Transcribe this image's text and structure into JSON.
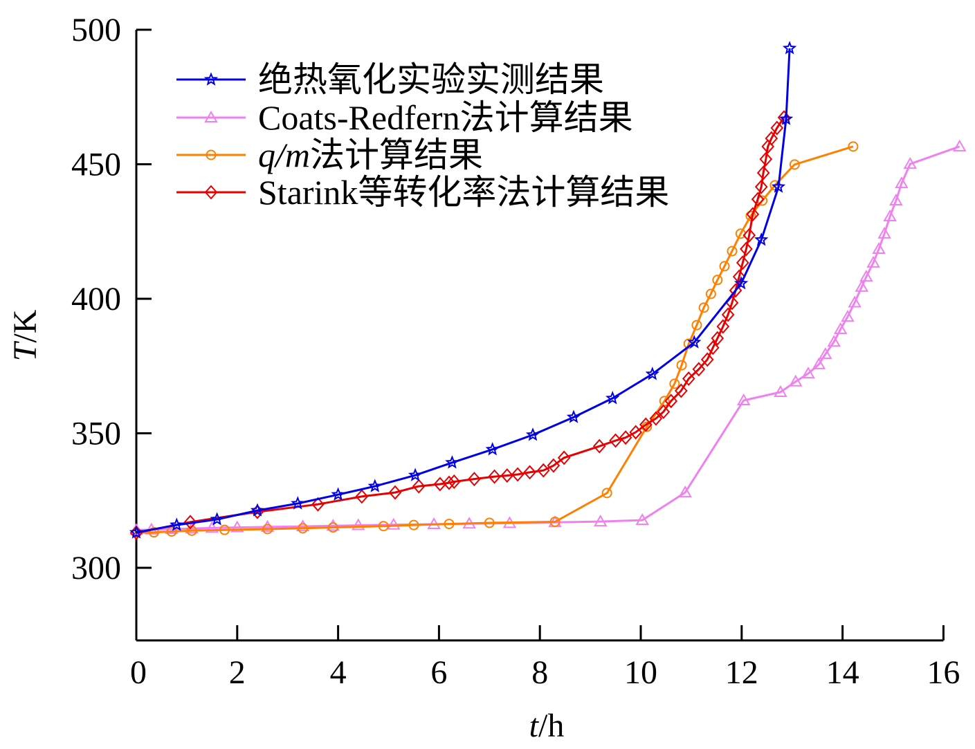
{
  "chart_data": {
    "type": "line",
    "title": "",
    "xlabel": {
      "var": "t",
      "unit": "/h"
    },
    "ylabel": {
      "var": "T",
      "unit": "/K"
    },
    "xlim": [
      0,
      16
    ],
    "ylim": [
      273,
      500
    ],
    "xticks": [
      "0",
      "2",
      "4",
      "6",
      "8",
      "10",
      "12",
      "14",
      "16"
    ],
    "yticks": [
      "300",
      "350",
      "400",
      "450",
      "500"
    ],
    "legend_position": "top-left",
    "series": [
      {
        "name": "绝热氧化实验实测结果",
        "name_italic": "",
        "color": "#0000e6",
        "marker": "star",
        "x": [
          0,
          0.8,
          1.6,
          2.4,
          3.2,
          4.0,
          4.73,
          5.53,
          6.26,
          7.06,
          7.86,
          8.67,
          9.44,
          10.23,
          11.06,
          11.99,
          12.39,
          12.73,
          12.88,
          12.95
        ],
        "y": [
          313.1,
          315.9,
          318.0,
          321.3,
          323.9,
          327.2,
          330.3,
          334.4,
          339.1,
          344.0,
          349.4,
          356.0,
          363.0,
          372.0,
          383.8,
          405.7,
          421.9,
          441.6,
          466.8,
          493.1
        ]
      },
      {
        "name": "Coats-Redfern法计算结果",
        "name_italic": "",
        "color": "#f080f0",
        "marker": "triangle",
        "x": [
          0,
          0.3,
          0.7,
          1.1,
          1.5,
          2.0,
          2.6,
          3.3,
          3.9,
          4.4,
          5.1,
          5.9,
          6.6,
          7.4,
          8.3,
          9.2,
          10.03,
          10.88,
          12.04,
          12.77,
          13.07,
          13.32,
          13.53,
          13.66,
          13.83,
          13.96,
          14.1,
          14.24,
          14.38,
          14.47,
          14.61,
          14.72,
          14.83,
          14.94,
          15.06,
          15.17,
          15.34,
          16.32
        ],
        "y": [
          314,
          314.2,
          314.4,
          314.6,
          314.8,
          315,
          315.2,
          315.4,
          315.6,
          315.8,
          316,
          316.2,
          316.4,
          316.6,
          316.9,
          317.2,
          317.7,
          328,
          362.2,
          365.3,
          369.2,
          372.2,
          375.6,
          379.4,
          384,
          388.7,
          393.3,
          398.6,
          404.4,
          408.2,
          413.4,
          418.5,
          424.2,
          430.6,
          436.5,
          442.9,
          450.1,
          456.6
        ]
      },
      {
        "name": "法计算结果",
        "name_italic": "q/m",
        "color": "#ff8000",
        "marker": "circle",
        "x": [
          0,
          0.35,
          0.7,
          1.1,
          1.75,
          2.6,
          3.3,
          3.9,
          4.9,
          5.5,
          6.2,
          7.0,
          8.3,
          9.33,
          10.12,
          10.47,
          10.67,
          10.81,
          10.95,
          11.11,
          11.25,
          11.39,
          11.52,
          11.66,
          11.81,
          11.98,
          12.18,
          12.41,
          12.66,
          13.05,
          14.21
        ],
        "y": [
          313,
          313.2,
          313.5,
          313.8,
          314.1,
          314.4,
          314.7,
          315,
          315.5,
          315.9,
          316.3,
          316.7,
          317.1,
          327.8,
          352.4,
          362,
          368.4,
          375.3,
          383.3,
          390.2,
          396.7,
          401.8,
          407,
          412.1,
          417.7,
          424.2,
          430.8,
          436.5,
          442.2,
          449.9,
          456.6
        ]
      },
      {
        "name": "Starink等转化率法计算结果",
        "name_italic": "",
        "color": "#e60000",
        "marker": "diamond",
        "x": [
          0,
          1.07,
          2.4,
          3.6,
          4.47,
          5.13,
          5.6,
          6.02,
          6.2,
          6.3,
          6.7,
          7.1,
          7.35,
          7.56,
          7.8,
          8.07,
          8.27,
          8.48,
          9.18,
          9.5,
          9.7,
          9.9,
          10.1,
          10.3,
          10.45,
          10.6,
          10.8,
          10.95,
          11.15,
          11.32,
          11.43,
          11.52,
          11.63,
          11.73,
          11.81,
          11.88,
          11.95,
          12.02,
          12.09,
          12.15,
          12.22,
          12.32,
          12.39,
          12.43,
          12.48,
          12.52,
          12.59,
          12.7,
          12.84
        ],
        "y": [
          313,
          317,
          320.8,
          323.6,
          326.5,
          328,
          330.3,
          331.1,
          331.6,
          332,
          333,
          333.9,
          334.3,
          334.7,
          335.5,
          336.2,
          338,
          340.9,
          345.2,
          347.3,
          348.4,
          350.4,
          353.2,
          355.5,
          358,
          362,
          365.8,
          370.3,
          373.8,
          377.4,
          381.8,
          385.3,
          389.7,
          394.1,
          398.5,
          403.1,
          408.2,
          413.4,
          418.5,
          423.6,
          431.4,
          437,
          441.6,
          446.8,
          451.9,
          456.6,
          459.6,
          463.5,
          467.4
        ]
      }
    ]
  }
}
